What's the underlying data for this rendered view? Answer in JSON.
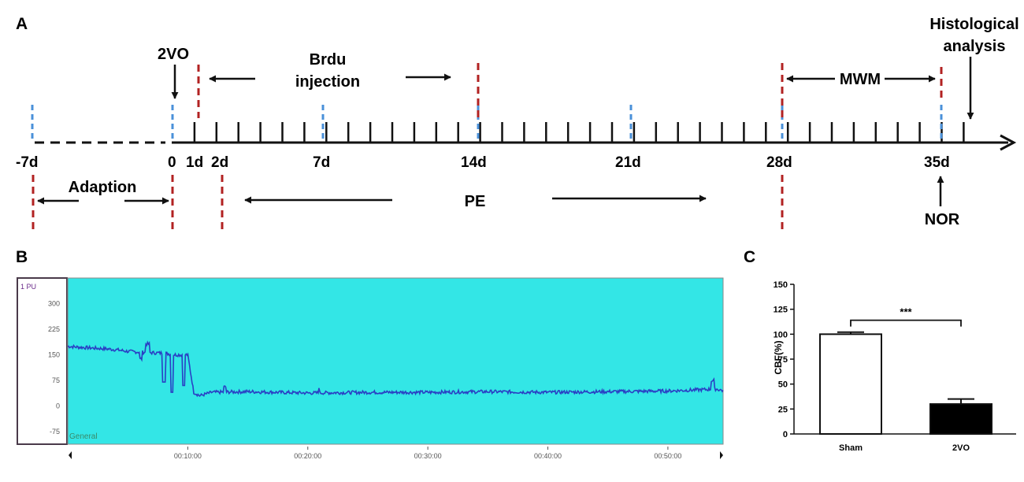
{
  "panel_a": {
    "label": "A",
    "events": {
      "two_vo": "2VO",
      "brdu_line1": "Brdu",
      "brdu_line2": "injection",
      "mwm": "MWM",
      "histo_line1": "Histological",
      "histo_line2": "analysis",
      "adaption": "Adaption",
      "pe": "PE",
      "nor": "NOR"
    },
    "ticks": [
      "-7d",
      "0",
      "1d",
      "2d",
      "7d",
      "14d",
      "21d",
      "28d",
      "35d"
    ]
  },
  "panel_b": {
    "label": "B",
    "channel": "1 PU",
    "footer": "General",
    "y_ticks": [
      "300",
      "225",
      "150",
      "75",
      "0",
      "-75"
    ],
    "x_ticks": [
      "00:10:00",
      "00:20:00",
      "00:30:00",
      "00:40:00",
      "00:50:00"
    ],
    "colors": {
      "plot_bg": "#33e6e6",
      "trace": "#2a3fc4"
    },
    "chart_data": {
      "type": "line",
      "title": "",
      "xlabel": "",
      "ylabel": "",
      "x_unit": "minutes",
      "ylim": [
        -112,
        375
      ],
      "x": [
        0,
        1,
        2,
        3,
        4,
        5,
        6,
        7,
        8,
        9,
        10,
        10.5,
        11,
        12,
        15,
        20,
        25,
        30,
        35,
        40,
        45,
        50,
        53,
        54,
        54.6
      ],
      "series": [
        {
          "values": [
            175,
            172,
            170,
            168,
            165,
            160,
            158,
            156,
            155,
            150,
            150,
            40,
            30,
            40,
            42,
            38,
            40,
            40,
            42,
            40,
            42,
            44,
            48,
            50,
            45
          ]
        }
      ]
    }
  },
  "panel_c": {
    "label": "C",
    "significance": "***",
    "colors": {
      "sham": "#ffffff",
      "two_vo": "#000000"
    },
    "chart_data": {
      "type": "bar",
      "title": "",
      "xlabel": "",
      "ylabel": "CBF(%)",
      "categories": [
        "Sham",
        "2VO"
      ],
      "values": [
        100,
        30
      ],
      "errors": [
        2,
        5
      ],
      "ylim": [
        0,
        150
      ],
      "yticks": [
        0,
        25,
        50,
        75,
        100,
        125,
        150
      ]
    }
  }
}
